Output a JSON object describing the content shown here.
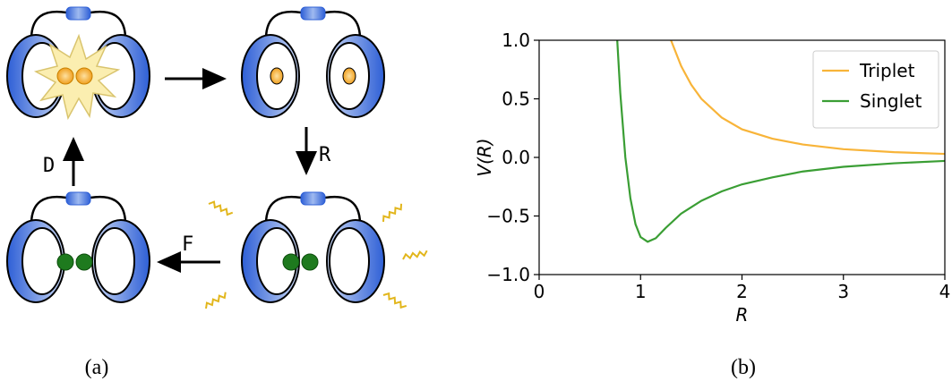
{
  "diagram": {
    "labels": [
      "D",
      "R",
      "F"
    ],
    "captions": [
      "(a)",
      "(b)"
    ]
  },
  "chart_data": {
    "type": "line",
    "xlabel": "R",
    "ylabel": "V(R)",
    "xlim": [
      0,
      4
    ],
    "ylim": [
      -1,
      1
    ],
    "xticks": [
      0,
      1,
      2,
      3,
      4
    ],
    "yticks": [
      {
        "value": -1,
        "label": "−1.0"
      },
      {
        "value": -0.5,
        "label": "−0.5"
      },
      {
        "value": 0,
        "label": "0.0"
      },
      {
        "value": 0.5,
        "label": "0.5"
      },
      {
        "value": 1,
        "label": "1.0"
      }
    ],
    "legend": "upper right",
    "series": [
      {
        "name": "Triplet",
        "color": "#f8b439",
        "x": [
          1.3,
          1.4,
          1.5,
          1.6,
          1.8,
          2.0,
          2.3,
          2.6,
          3.0,
          3.5,
          4.0
        ],
        "values": [
          1.0,
          0.78,
          0.62,
          0.5,
          0.34,
          0.24,
          0.16,
          0.11,
          0.07,
          0.045,
          0.03
        ]
      },
      {
        "name": "Singlet",
        "color": "#3a9e34",
        "x": [
          0.77,
          0.8,
          0.85,
          0.9,
          0.95,
          1.0,
          1.07,
          1.15,
          1.25,
          1.4,
          1.6,
          1.8,
          2.0,
          2.3,
          2.6,
          3.0,
          3.5,
          4.0
        ],
        "values": [
          1.0,
          0.55,
          0.0,
          -0.35,
          -0.57,
          -0.68,
          -0.72,
          -0.69,
          -0.6,
          -0.48,
          -0.37,
          -0.29,
          -0.23,
          -0.17,
          -0.12,
          -0.08,
          -0.05,
          -0.03
        ]
      }
    ]
  }
}
